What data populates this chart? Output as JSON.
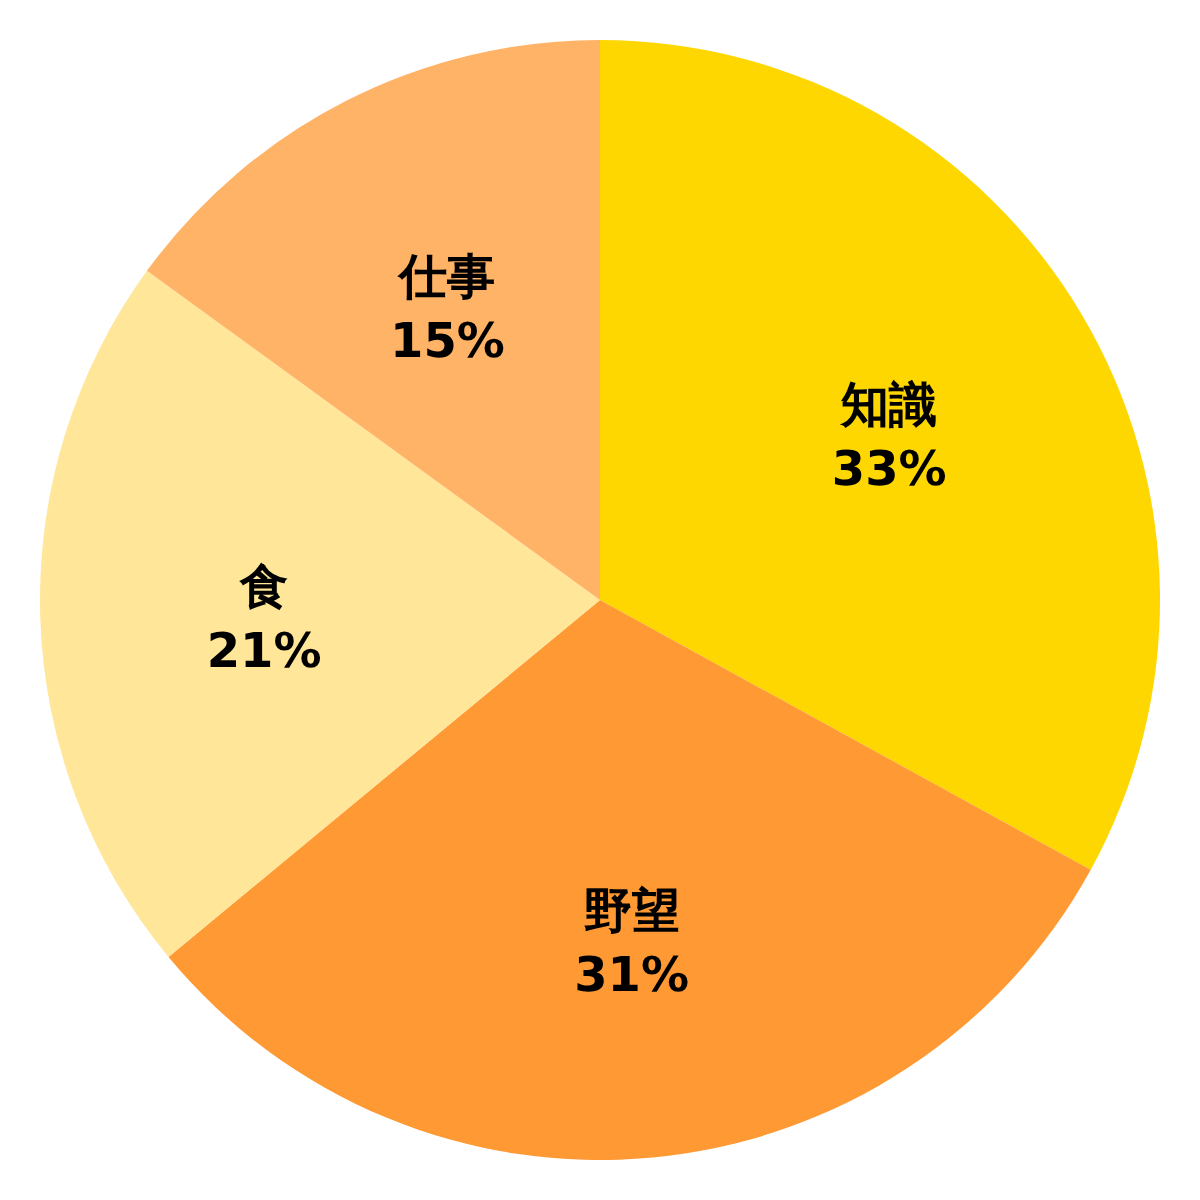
{
  "chart_data": {
    "type": "pie",
    "categories": [
      "知識",
      "野望",
      "食",
      "仕事"
    ],
    "values": [
      33,
      31,
      21,
      15
    ],
    "colors": [
      "#ffd700",
      "#ff9933",
      "#ffe699",
      "#ffb366"
    ],
    "value_labels": [
      "33%",
      "31%",
      "21%",
      "15%"
    ]
  }
}
